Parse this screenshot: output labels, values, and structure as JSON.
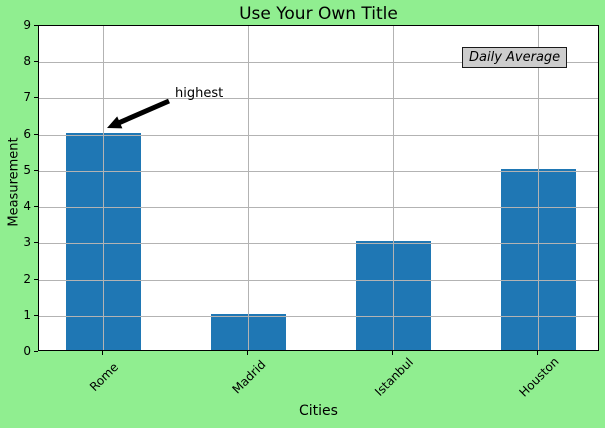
{
  "chart_data": {
    "type": "bar",
    "categories": [
      "Rome",
      "Madrid",
      "Istanbul",
      "Houston"
    ],
    "values": [
      6,
      1,
      3,
      5
    ],
    "title": "Use Your Own Title",
    "xlabel": "Cities",
    "ylabel": "Measurement",
    "ylim": [
      0,
      9
    ],
    "yticks": [
      0,
      1,
      2,
      3,
      4,
      5,
      6,
      7,
      8,
      9
    ],
    "grid": true,
    "legend": "none",
    "bar_color": "#1f77b4",
    "figure_background": "#90ee90",
    "plot_background": "#ffffff",
    "grid_color": "#b3b3b3",
    "annotation": {
      "text": "highest",
      "arrow_color": "#000000",
      "points_to": "top of Rome bar"
    },
    "textbox": {
      "label": "Daily Average",
      "fill": "#cdcdcd",
      "position": "top-right"
    }
  }
}
